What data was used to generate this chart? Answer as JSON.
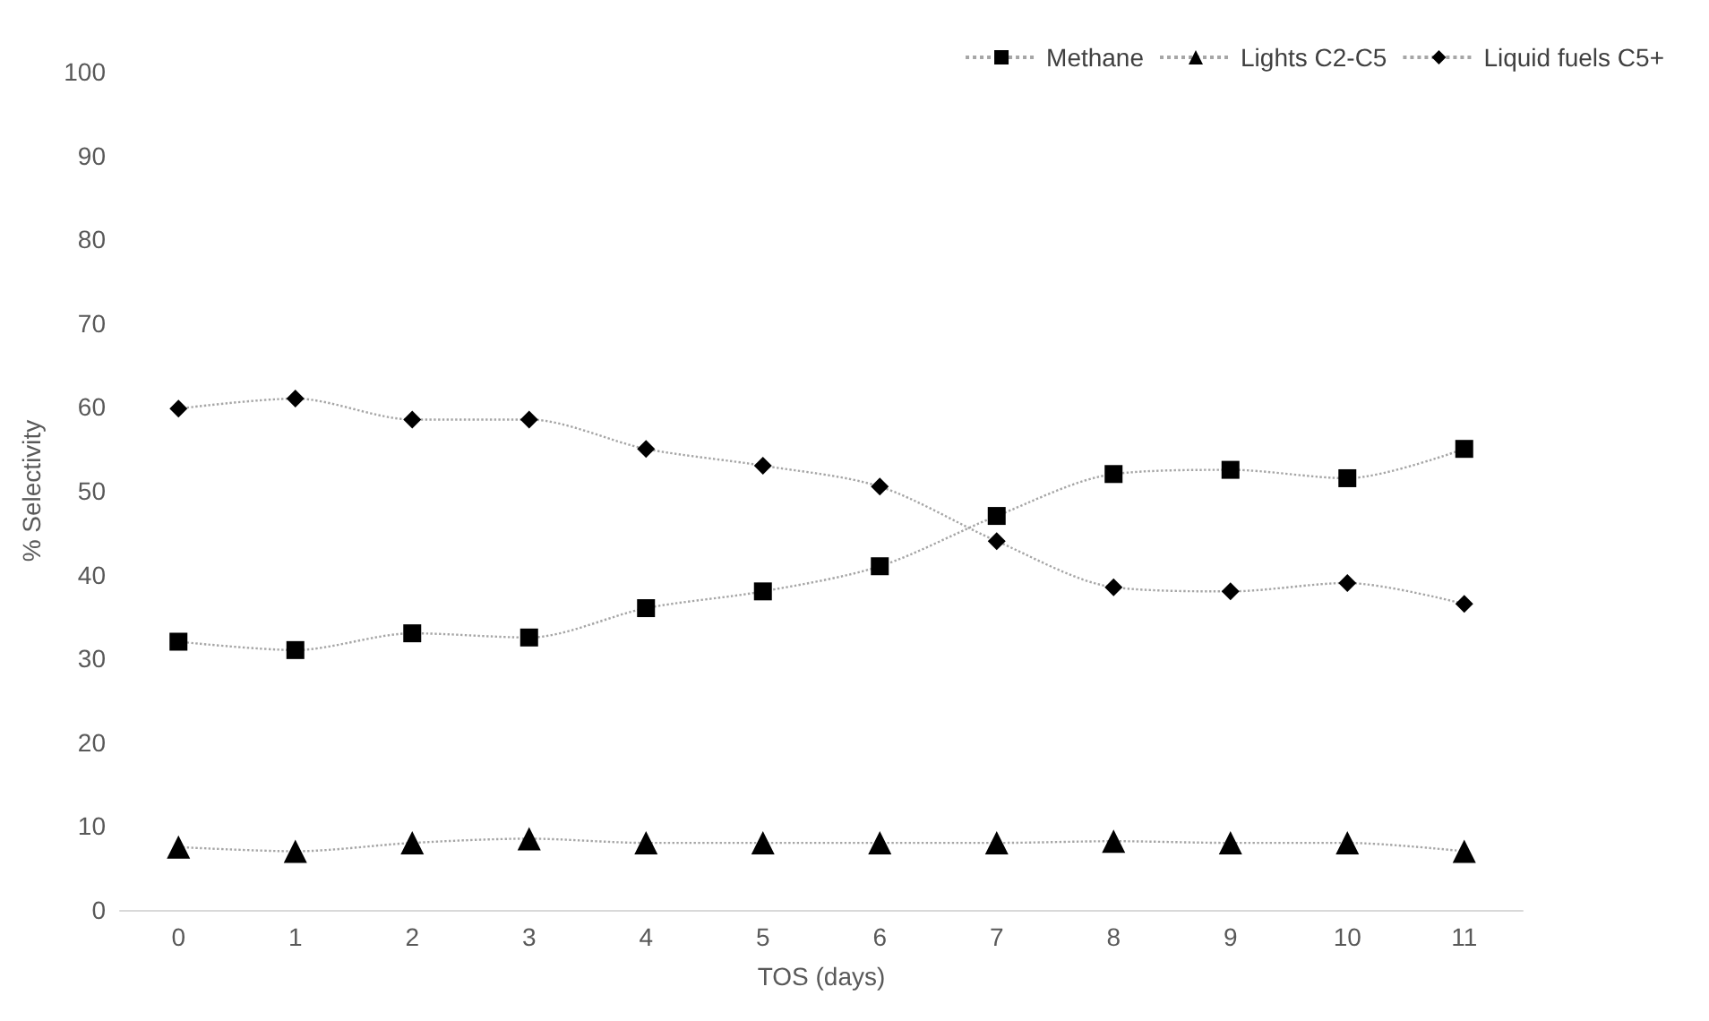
{
  "chart_data": {
    "type": "line",
    "xlabel": "TOS (days)",
    "ylabel": "% Selectivity",
    "categories": [
      "0",
      "1",
      "2",
      "3",
      "4",
      "5",
      "6",
      "7",
      "8",
      "9",
      "10",
      "11"
    ],
    "ylim": [
      0,
      100
    ],
    "yticks": [
      0,
      10,
      20,
      30,
      40,
      50,
      60,
      70,
      80,
      90,
      100
    ],
    "grid": false,
    "legend": "top right",
    "line_style": "dotted",
    "series": [
      {
        "name": "Methane",
        "color": "#000000",
        "marker": "square",
        "values": [
          32,
          31,
          33,
          32.5,
          36,
          38,
          41,
          47,
          52,
          52.5,
          51.5,
          55
        ]
      },
      {
        "name": "Lights C2-C5",
        "color": "#000000",
        "marker": "triangle",
        "values": [
          7.5,
          7,
          8,
          8.5,
          8,
          8,
          8,
          8,
          8.2,
          8,
          8,
          7
        ]
      },
      {
        "name": "Liquid fuels C5+",
        "color": "#000000",
        "marker": "diamond",
        "values": [
          59.8,
          61,
          58.5,
          58.5,
          55,
          53,
          50.5,
          44,
          38.5,
          38,
          39,
          36.5
        ]
      }
    ]
  }
}
